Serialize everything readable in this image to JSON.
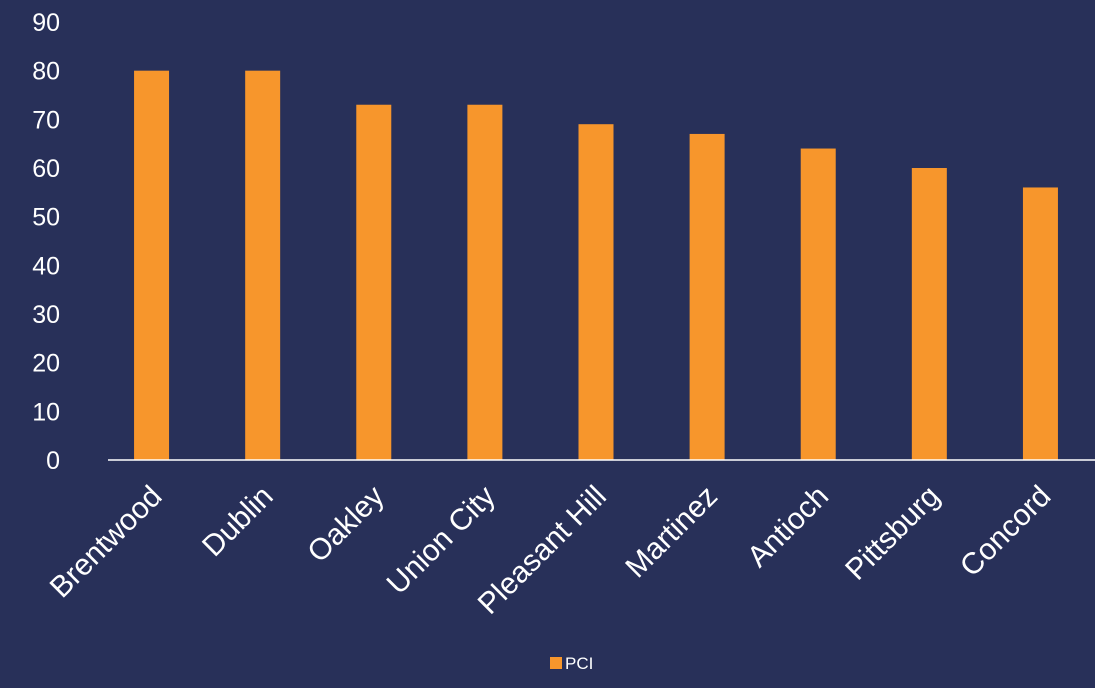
{
  "chart_data": {
    "type": "bar",
    "categories": [
      "Brentwood",
      "Dublin",
      "Oakley",
      "Union City",
      "Pleasant Hill",
      "Martinez",
      "Antioch",
      "Pittsburg",
      "Concord"
    ],
    "series": [
      {
        "name": "PCI",
        "values": [
          80,
          80,
          73,
          73,
          69,
          67,
          64,
          60,
          56
        ]
      }
    ],
    "ylim": [
      0,
      90
    ],
    "yticks": [
      0,
      10,
      20,
      30,
      40,
      50,
      60,
      70,
      80,
      90
    ],
    "grid": false,
    "legend_position": "bottom",
    "colors": {
      "background": "#283059",
      "bar": "#F7962C",
      "text": "#FFFFFF",
      "axis": "#FFFFFF"
    }
  }
}
